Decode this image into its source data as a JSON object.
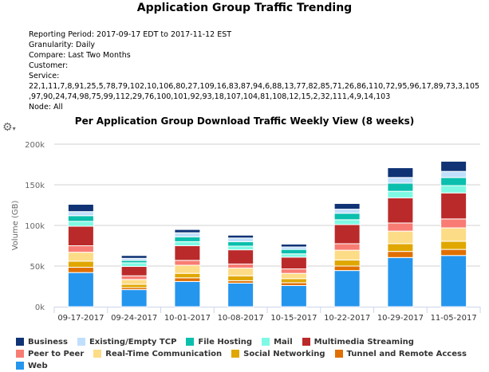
{
  "title": "Application Group Traffic Trending",
  "meta": {
    "reporting_period": "Reporting Period: 2017-09-17 EDT to 2017-11-12 EST",
    "granularity": "Granularity: Daily",
    "compare": "Compare: Last Two Months",
    "customer": "Customer:",
    "service_label": "Service:",
    "service_line1": "22,1,11,7,8,91,25,5,78,79,102,10,106,80,27,109,16,83,87,94,6,88,13,77,82,85,71,26,86,110,72,95,96,17,89,73,3,105",
    "service_line2": ",97,90,24,74,98,75,99,112,29,76,100,101,92,93,18,107,104,81,108,12,15,2,32,111,4,9,14,103",
    "node": "Node: All"
  },
  "gear_icon": "gear-dropdown-icon",
  "chart_data": {
    "type": "bar",
    "stacked": true,
    "title": "Per Application Group Download Traffic Weekly View (8 weeks)",
    "ylabel": "Volume (GB)",
    "xlabel": "",
    "ylim": [
      0,
      200000
    ],
    "yticks": [
      "0k",
      "50k",
      "100k",
      "150k",
      "200k"
    ],
    "grid": true,
    "legend": "bottom",
    "categories": [
      "09-17-2017",
      "09-24-2017",
      "10-01-2017",
      "10-08-2017",
      "10-15-2017",
      "10-22-2017",
      "10-29-2017",
      "11-05-2017"
    ],
    "series": [
      {
        "name": "Web",
        "color": "#2596ee",
        "values": [
          42000,
          21000,
          31000,
          29000,
          26000,
          44500,
          60500,
          63000
        ]
      },
      {
        "name": "Tunnel and Remote Access",
        "color": "#e06f00",
        "values": [
          6500,
          2500,
          4500,
          3000,
          3500,
          5500,
          7500,
          7500
        ]
      },
      {
        "name": "Social Networking",
        "color": "#e0a700",
        "values": [
          7500,
          4000,
          5500,
          6000,
          5000,
          7500,
          9500,
          10000
        ]
      },
      {
        "name": "Real-Time Communication",
        "color": "#fddc87",
        "values": [
          11000,
          6000,
          10000,
          9500,
          6500,
          12000,
          15500,
          16500
        ]
      },
      {
        "name": "Peer to Peer",
        "color": "#f87c73",
        "values": [
          8000,
          4500,
          6000,
          5000,
          5500,
          8000,
          10000,
          11000
        ]
      },
      {
        "name": "Multimedia Streaming",
        "color": "#bb2a2a",
        "values": [
          24000,
          11500,
          18000,
          17500,
          14500,
          23500,
          31000,
          32000
        ]
      },
      {
        "name": "Mail",
        "color": "#7ff9e4",
        "values": [
          6000,
          4500,
          5000,
          4500,
          4000,
          6000,
          8000,
          9000
        ]
      },
      {
        "name": "File Hosting",
        "color": "#0abfad",
        "values": [
          7000,
          3000,
          6000,
          5500,
          5500,
          8000,
          10000,
          10000
        ]
      },
      {
        "name": "Existing/Empty TCP",
        "color": "#c0dffc",
        "values": [
          5000,
          2500,
          5000,
          4500,
          3000,
          5000,
          7000,
          7500
        ]
      },
      {
        "name": "Business",
        "color": "#0f3375",
        "values": [
          9000,
          3500,
          4000,
          3500,
          3500,
          7000,
          12000,
          12500
        ]
      }
    ],
    "legend_order": [
      "Business",
      "Existing/Empty TCP",
      "File Hosting",
      "Mail",
      "Multimedia Streaming",
      "Peer to Peer",
      "Real-Time Communication",
      "Social Networking",
      "Tunnel and Remote Access",
      "Web"
    ]
  }
}
